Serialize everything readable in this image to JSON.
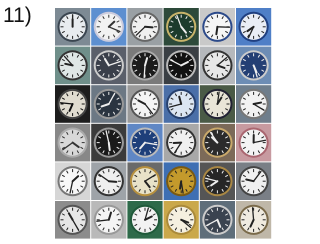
{
  "figure": {
    "label": "11)"
  }
}
